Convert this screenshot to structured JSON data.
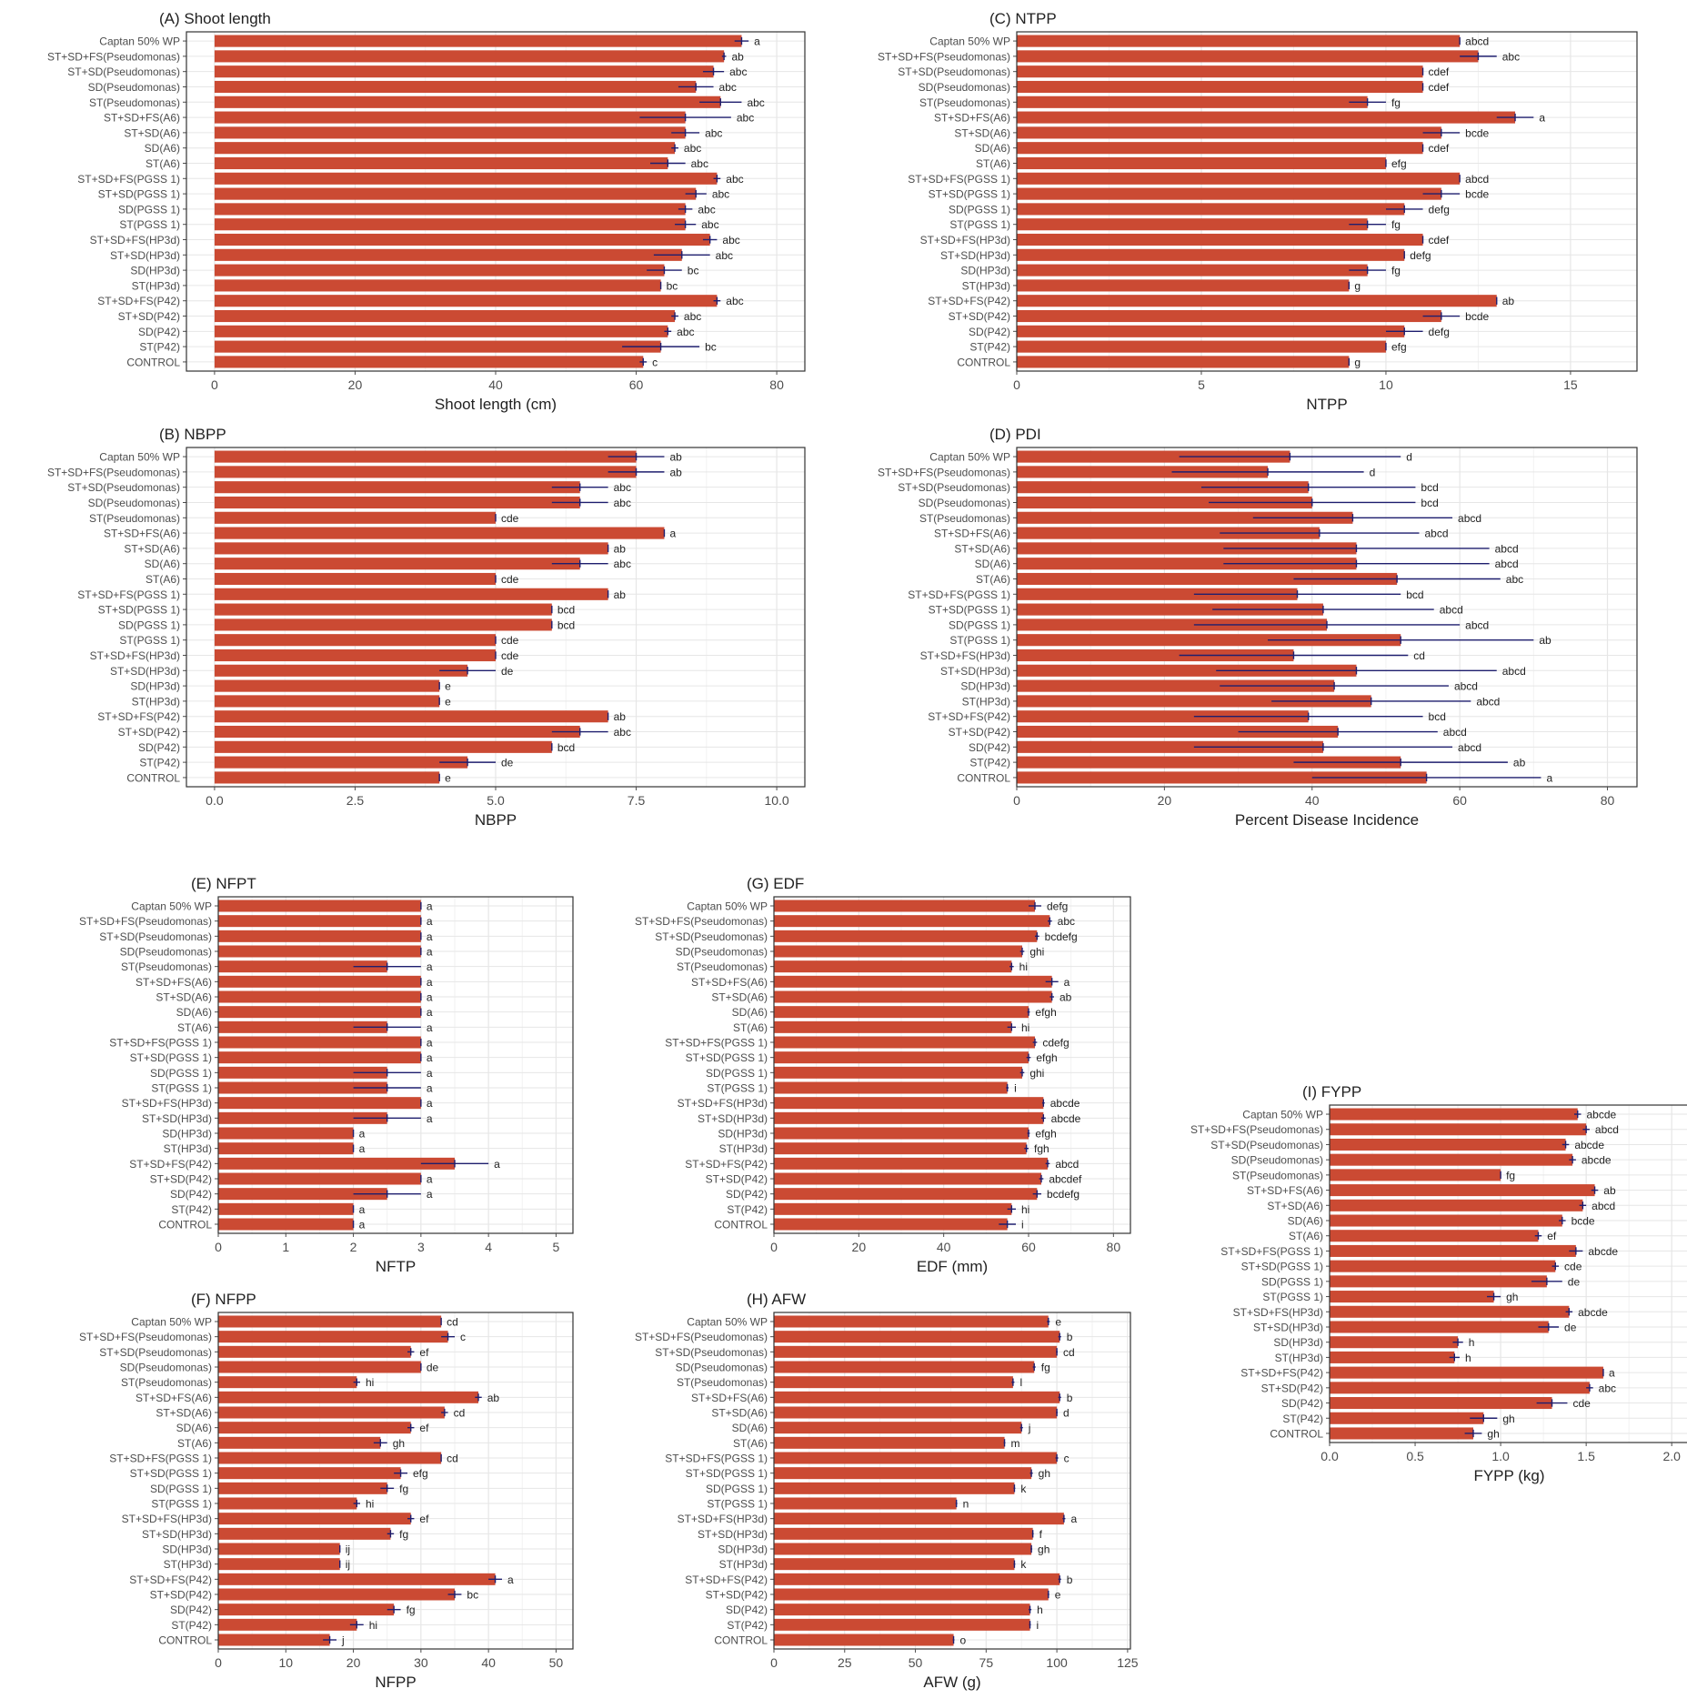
{
  "colors": {
    "bar": "#CB4A33",
    "errorbar": "#1E1E6E",
    "grid": "#E6E6E6",
    "border": "#333333",
    "text": "#222222",
    "tick_label": "#4D4D4D"
  },
  "chart_data": [
    {
      "id": "A",
      "type": "bar",
      "orientation": "horizontal",
      "title": "(A) Shoot length",
      "xlabel": "Shoot length (cm)",
      "ylabel": "",
      "xlim": [
        -4,
        84
      ],
      "xticks": [
        0,
        20,
        40,
        60,
        80
      ],
      "xtick_labels": [
        "0",
        "20",
        "40",
        "60",
        "80"
      ],
      "grid": true,
      "categories": [
        "Captan 50% WP",
        "ST+SD+FS(Pseudomonas)",
        "ST+SD(Pseudomonas)",
        "SD(Pseudomonas)",
        "ST(Pseudomonas)",
        "ST+SD+FS(A6)",
        "ST+SD(A6)",
        "SD(A6)",
        "ST(A6)",
        "ST+SD+FS(PGSS 1)",
        "ST+SD(PGSS 1)",
        "SD(PGSS 1)",
        "ST(PGSS 1)",
        "ST+SD+FS(HP3d)",
        "ST+SD(HP3d)",
        "SD(HP3d)",
        "ST(HP3d)",
        "ST+SD+FS(P42)",
        "ST+SD(P42)",
        "SD(P42)",
        "ST(P42)",
        "CONTROL"
      ],
      "values": [
        75,
        72.5,
        71,
        68.5,
        72,
        67,
        67,
        65.5,
        64.5,
        71.5,
        68.5,
        67,
        67,
        70.5,
        66.5,
        64,
        63.5,
        71.5,
        65.5,
        64.5,
        63.5,
        61
      ],
      "errors": [
        1,
        0.3,
        1.5,
        2.5,
        3,
        6.5,
        2,
        0.5,
        2.5,
        0.5,
        1.5,
        1,
        1.5,
        1,
        4,
        2.5,
        0,
        0.5,
        0.5,
        0.5,
        5.5,
        0.5
      ],
      "letters": [
        "a",
        "ab",
        "abc",
        "abc",
        "abc",
        "abc",
        "abc",
        "abc",
        "abc",
        "abc",
        "abc",
        "abc",
        "abc",
        "abc",
        "abc",
        "bc",
        "bc",
        "abc",
        "abc",
        "abc",
        "bc",
        "c"
      ]
    },
    {
      "id": "C",
      "type": "bar",
      "orientation": "horizontal",
      "title": "(C) NTPP",
      "xlabel": "NTPP",
      "ylabel": "",
      "xlim": [
        0,
        16.8
      ],
      "xticks": [
        0,
        5,
        10,
        15
      ],
      "xtick_labels": [
        "0",
        "5",
        "10",
        "15"
      ],
      "grid": true,
      "categories": [
        "Captan 50% WP",
        "ST+SD+FS(Pseudomonas)",
        "ST+SD(Pseudomonas)",
        "SD(Pseudomonas)",
        "ST(Pseudomonas)",
        "ST+SD+FS(A6)",
        "ST+SD(A6)",
        "SD(A6)",
        "ST(A6)",
        "ST+SD+FS(PGSS 1)",
        "ST+SD(PGSS 1)",
        "SD(PGSS 1)",
        "ST(PGSS 1)",
        "ST+SD+FS(HP3d)",
        "ST+SD(HP3d)",
        "SD(HP3d)",
        "ST(HP3d)",
        "ST+SD+FS(P42)",
        "ST+SD(P42)",
        "SD(P42)",
        "ST(P42)",
        "CONTROL"
      ],
      "values": [
        12,
        12.5,
        11,
        11,
        9.5,
        13.5,
        11.5,
        11,
        10,
        12,
        11.5,
        10.5,
        9.5,
        11,
        10.5,
        9.5,
        9,
        13,
        11.5,
        10.5,
        10,
        9
      ],
      "errors": [
        0,
        0.5,
        0,
        0,
        0.5,
        0.5,
        0.5,
        0,
        0,
        0,
        0.5,
        0.5,
        0.5,
        0,
        0,
        0.5,
        0,
        0,
        0.5,
        0.5,
        0,
        0
      ],
      "letters": [
        "abcd",
        "abc",
        "cdef",
        "cdef",
        "fg",
        "a",
        "bcde",
        "cdef",
        "efg",
        "abcd",
        "bcde",
        "defg",
        "fg",
        "cdef",
        "defg",
        "fg",
        "g",
        "ab",
        "bcde",
        "defg",
        "efg",
        "g"
      ]
    },
    {
      "id": "B",
      "type": "bar",
      "orientation": "horizontal",
      "title": "(B) NBPP",
      "xlabel": "NBPP",
      "ylabel": "",
      "xlim": [
        -0.5,
        10.5
      ],
      "xticks": [
        0,
        2.5,
        5,
        7.5,
        10
      ],
      "xtick_labels": [
        "0.0",
        "2.5",
        "5.0",
        "7.5",
        "10.0"
      ],
      "grid": true,
      "categories": [
        "Captan 50% WP",
        "ST+SD+FS(Pseudomonas)",
        "ST+SD(Pseudomonas)",
        "SD(Pseudomonas)",
        "ST(Pseudomonas)",
        "ST+SD+FS(A6)",
        "ST+SD(A6)",
        "SD(A6)",
        "ST(A6)",
        "ST+SD+FS(PGSS 1)",
        "ST+SD(PGSS 1)",
        "SD(PGSS 1)",
        "ST(PGSS 1)",
        "ST+SD+FS(HP3d)",
        "ST+SD(HP3d)",
        "SD(HP3d)",
        "ST(HP3d)",
        "ST+SD+FS(P42)",
        "ST+SD(P42)",
        "SD(P42)",
        "ST(P42)",
        "CONTROL"
      ],
      "values": [
        7.5,
        7.5,
        6.5,
        6.5,
        5,
        8,
        7,
        6.5,
        5,
        7,
        6,
        6,
        5,
        5,
        4.5,
        4,
        4,
        7,
        6.5,
        6,
        4.5,
        4
      ],
      "errors": [
        0.5,
        0.5,
        0.5,
        0.5,
        0,
        0,
        0,
        0.5,
        0,
        0,
        0,
        0,
        0,
        0,
        0.5,
        0,
        0,
        0,
        0.5,
        0,
        0.5,
        0
      ],
      "letters": [
        "ab",
        "ab",
        "abc",
        "abc",
        "cde",
        "a",
        "ab",
        "abc",
        "cde",
        "ab",
        "bcd",
        "bcd",
        "cde",
        "cde",
        "de",
        "e",
        "e",
        "ab",
        "abc",
        "bcd",
        "de",
        "e"
      ]
    },
    {
      "id": "D",
      "type": "bar",
      "orientation": "horizontal",
      "title": "(D) PDI",
      "xlabel": "Percent Disease Incidence",
      "ylabel": "",
      "xlim": [
        0,
        84
      ],
      "xticks": [
        0,
        20,
        40,
        60,
        80
      ],
      "xtick_labels": [
        "0",
        "20",
        "40",
        "60",
        "80"
      ],
      "grid": true,
      "categories": [
        "Captan 50% WP",
        "ST+SD+FS(Pseudomonas)",
        "ST+SD(Pseudomonas)",
        "SD(Pseudomonas)",
        "ST(Pseudomonas)",
        "ST+SD+FS(A6)",
        "ST+SD(A6)",
        "SD(A6)",
        "ST(A6)",
        "ST+SD+FS(PGSS 1)",
        "ST+SD(PGSS 1)",
        "SD(PGSS 1)",
        "ST(PGSS 1)",
        "ST+SD+FS(HP3d)",
        "ST+SD(HP3d)",
        "SD(HP3d)",
        "ST(HP3d)",
        "ST+SD+FS(P42)",
        "ST+SD(P42)",
        "SD(P42)",
        "ST(P42)",
        "CONTROL"
      ],
      "values": [
        37,
        34,
        39.5,
        40,
        45.5,
        41,
        46,
        46,
        51.5,
        38,
        41.5,
        42,
        52,
        37.5,
        46,
        43,
        48,
        39.5,
        43.5,
        41.5,
        52,
        55.5
      ],
      "errors": [
        15,
        13,
        14.5,
        14,
        13.5,
        13.5,
        18,
        18,
        14,
        14,
        15,
        18,
        18,
        15.5,
        19,
        15.5,
        13.5,
        15.5,
        13.5,
        17.5,
        14.5,
        15.5
      ],
      "letters": [
        "d",
        "d",
        "bcd",
        "bcd",
        "abcd",
        "abcd",
        "abcd",
        "abcd",
        "abc",
        "bcd",
        "abcd",
        "abcd",
        "ab",
        "cd",
        "abcd",
        "abcd",
        "abcd",
        "bcd",
        "abcd",
        "abcd",
        "ab",
        "a"
      ]
    },
    {
      "id": "E",
      "type": "bar",
      "orientation": "horizontal",
      "title": "(E) NFPT",
      "xlabel": "NFTP",
      "ylabel": "",
      "xlim": [
        0,
        5.25
      ],
      "xticks": [
        0,
        1,
        2,
        3,
        4,
        5
      ],
      "xtick_labels": [
        "0",
        "1",
        "2",
        "3",
        "4",
        "5"
      ],
      "grid": true,
      "categories": [
        "Captan 50% WP",
        "ST+SD+FS(Pseudomonas)",
        "ST+SD(Pseudomonas)",
        "SD(Pseudomonas)",
        "ST(Pseudomonas)",
        "ST+SD+FS(A6)",
        "ST+SD(A6)",
        "SD(A6)",
        "ST(A6)",
        "ST+SD+FS(PGSS 1)",
        "ST+SD(PGSS 1)",
        "SD(PGSS 1)",
        "ST(PGSS 1)",
        "ST+SD+FS(HP3d)",
        "ST+SD(HP3d)",
        "SD(HP3d)",
        "ST(HP3d)",
        "ST+SD+FS(P42)",
        "ST+SD(P42)",
        "SD(P42)",
        "ST(P42)",
        "CONTROL"
      ],
      "values": [
        3,
        3,
        3,
        3,
        2.5,
        3,
        3,
        3,
        2.5,
        3,
        3,
        2.5,
        2.5,
        3,
        2.5,
        2,
        2,
        3.5,
        3,
        2.5,
        2,
        2
      ],
      "errors": [
        0,
        0,
        0,
        0,
        0.5,
        0,
        0,
        0,
        0.5,
        0,
        0,
        0.5,
        0.5,
        0,
        0.5,
        0,
        0,
        0.5,
        0,
        0.5,
        0,
        0
      ],
      "letters": [
        "a",
        "a",
        "a",
        "a",
        "a",
        "a",
        "a",
        "a",
        "a",
        "a",
        "a",
        "a",
        "a",
        "a",
        "a",
        "a",
        "a",
        "a",
        "a",
        "a",
        "a",
        "a"
      ]
    },
    {
      "id": "G",
      "type": "bar",
      "orientation": "horizontal",
      "title": "(G) EDF",
      "xlabel": "EDF (mm)",
      "ylabel": "",
      "xlim": [
        0,
        84
      ],
      "xticks": [
        0,
        20,
        40,
        60,
        80
      ],
      "xtick_labels": [
        "0",
        "20",
        "40",
        "60",
        "80"
      ],
      "grid": true,
      "categories": [
        "Captan 50% WP",
        "ST+SD+FS(Pseudomonas)",
        "ST+SD(Pseudomonas)",
        "SD(Pseudomonas)",
        "ST(Pseudomonas)",
        "ST+SD+FS(A6)",
        "ST+SD(A6)",
        "SD(A6)",
        "ST(A6)",
        "ST+SD+FS(PGSS 1)",
        "ST+SD(PGSS 1)",
        "SD(PGSS 1)",
        "ST(PGSS 1)",
        "ST+SD+FS(HP3d)",
        "ST+SD(HP3d)",
        "SD(HP3d)",
        "ST(HP3d)",
        "ST+SD+FS(P42)",
        "ST+SD(P42)",
        "SD(P42)",
        "ST(P42)",
        "CONTROL"
      ],
      "values": [
        61.5,
        65,
        62,
        58.5,
        56,
        65.5,
        65.5,
        60,
        56,
        61.5,
        60,
        58.5,
        55,
        63.5,
        63.5,
        60,
        59.5,
        64.5,
        63,
        62,
        56,
        55
      ],
      "errors": [
        1.5,
        0.5,
        0.5,
        0.5,
        0.5,
        1.5,
        0.5,
        0.3,
        1,
        0.5,
        0.5,
        0.5,
        0.3,
        0.3,
        0.5,
        0.3,
        0.5,
        0.5,
        0.5,
        1,
        1,
        2
      ],
      "letters": [
        "defg",
        "abc",
        "bcdefg",
        "ghi",
        "hi",
        "a",
        "ab",
        "efgh",
        "hi",
        "cdefg",
        "efgh",
        "ghi",
        "i",
        "abcde",
        "abcde",
        "efgh",
        "fgh",
        "abcd",
        "abcdef",
        "bcdefg",
        "hi",
        "i"
      ]
    },
    {
      "id": "I",
      "type": "bar",
      "orientation": "horizontal",
      "title": "(I) FYPP",
      "xlabel": "FYPP (kg)",
      "ylabel": "",
      "xlim": [
        0,
        2.1
      ],
      "xticks": [
        0,
        0.5,
        1,
        1.5,
        2
      ],
      "xtick_labels": [
        "0.0",
        "0.5",
        "1.0",
        "1.5",
        "2.0"
      ],
      "grid": true,
      "categories": [
        "Captan 50% WP",
        "ST+SD+FS(Pseudomonas)",
        "ST+SD(Pseudomonas)",
        "SD(Pseudomonas)",
        "ST(Pseudomonas)",
        "ST+SD+FS(A6)",
        "ST+SD(A6)",
        "SD(A6)",
        "ST(A6)",
        "ST+SD+FS(PGSS 1)",
        "ST+SD(PGSS 1)",
        "SD(PGSS 1)",
        "ST(PGSS 1)",
        "ST+SD+FS(HP3d)",
        "ST+SD(HP3d)",
        "SD(HP3d)",
        "ST(HP3d)",
        "ST+SD+FS(P42)",
        "ST+SD(P42)",
        "SD(P42)",
        "ST(P42)",
        "CONTROL"
      ],
      "values": [
        1.45,
        1.5,
        1.38,
        1.42,
        1,
        1.55,
        1.48,
        1.36,
        1.22,
        1.44,
        1.32,
        1.27,
        0.96,
        1.4,
        1.28,
        0.75,
        0.73,
        1.6,
        1.52,
        1.3,
        0.9,
        0.84
      ],
      "errors": [
        0.02,
        0.02,
        0.02,
        0.02,
        0,
        0.02,
        0.02,
        0.02,
        0.02,
        0.04,
        0.02,
        0.09,
        0.04,
        0.02,
        0.06,
        0.03,
        0.03,
        0,
        0.02,
        0.09,
        0.08,
        0.05
      ],
      "letters": [
        "abcde",
        "abcd",
        "abcde",
        "abcde",
        "fg",
        "ab",
        "abcd",
        "bcde",
        "ef",
        "abcde",
        "cde",
        "de",
        "gh",
        "abcde",
        "de",
        "h",
        "h",
        "a",
        "abc",
        "cde",
        "gh",
        "gh"
      ]
    },
    {
      "id": "F",
      "type": "bar",
      "orientation": "horizontal",
      "title": "(F) NFPP",
      "xlabel": "NFPP",
      "ylabel": "",
      "xlim": [
        0,
        52.5
      ],
      "xticks": [
        0,
        10,
        20,
        30,
        40,
        50
      ],
      "xtick_labels": [
        "0",
        "10",
        "20",
        "30",
        "40",
        "50"
      ],
      "grid": true,
      "categories": [
        "Captan 50% WP",
        "ST+SD+FS(Pseudomonas)",
        "ST+SD(Pseudomonas)",
        "SD(Pseudomonas)",
        "ST(Pseudomonas)",
        "ST+SD+FS(A6)",
        "ST+SD(A6)",
        "SD(A6)",
        "ST(A6)",
        "ST+SD+FS(PGSS 1)",
        "ST+SD(PGSS 1)",
        "SD(PGSS 1)",
        "ST(PGSS 1)",
        "ST+SD+FS(HP3d)",
        "ST+SD(HP3d)",
        "SD(HP3d)",
        "ST(HP3d)",
        "ST+SD+FS(P42)",
        "ST+SD(P42)",
        "SD(P42)",
        "ST(P42)",
        "CONTROL"
      ],
      "values": [
        33,
        34,
        28.5,
        30,
        20.5,
        38.5,
        33.5,
        28.5,
        24,
        33,
        27,
        25,
        20.5,
        28.5,
        25.5,
        18,
        18,
        41,
        35,
        26,
        20.5,
        16.5
      ],
      "errors": [
        0,
        1,
        0.5,
        0,
        0.5,
        0.5,
        0.5,
        0.5,
        1,
        0,
        1,
        1,
        0.5,
        0.5,
        0.5,
        0,
        0,
        1,
        1,
        1,
        1,
        1
      ],
      "letters": [
        "cd",
        "c",
        "ef",
        "de",
        "hi",
        "ab",
        "cd",
        "ef",
        "gh",
        "cd",
        "efg",
        "fg",
        "hi",
        "ef",
        "fg",
        "ij",
        "ij",
        "a",
        "bc",
        "fg",
        "hi",
        "j"
      ]
    },
    {
      "id": "H",
      "type": "bar",
      "orientation": "horizontal",
      "title": "(H) AFW",
      "xlabel": "AFW (g)",
      "ylabel": "",
      "xlim": [
        0,
        126
      ],
      "xticks": [
        0,
        25,
        50,
        75,
        100,
        125
      ],
      "xtick_labels": [
        "0",
        "25",
        "50",
        "75",
        "100",
        "125"
      ],
      "grid": true,
      "categories": [
        "Captan 50% WP",
        "ST+SD+FS(Pseudomonas)",
        "ST+SD(Pseudomonas)",
        "SD(Pseudomonas)",
        "ST(Pseudomonas)",
        "ST+SD+FS(A6)",
        "ST+SD(A6)",
        "SD(A6)",
        "ST(A6)",
        "ST+SD+FS(PGSS 1)",
        "ST+SD(PGSS 1)",
        "SD(PGSS 1)",
        "ST(PGSS 1)",
        "ST+SD+FS(HP3d)",
        "ST+SD(HP3d)",
        "SD(HP3d)",
        "ST(HP3d)",
        "ST+SD+FS(P42)",
        "ST+SD(P42)",
        "SD(P42)",
        "ST(P42)",
        "CONTROL"
      ],
      "values": [
        97,
        101,
        100,
        92,
        84.5,
        101,
        100,
        87.5,
        81.5,
        100,
        91,
        85,
        64.5,
        102.5,
        91.5,
        91,
        85,
        101,
        97,
        90.5,
        90.5,
        63.5
      ],
      "errors": [
        0.5,
        0.5,
        0.3,
        0.5,
        0.5,
        0.5,
        0.3,
        0.5,
        0.3,
        0.5,
        0.5,
        0.3,
        0.3,
        0.5,
        0.3,
        0.3,
        0.3,
        0.5,
        0.3,
        0.5,
        0.3,
        0.3
      ],
      "letters": [
        "e",
        "b",
        "cd",
        "fg",
        "l",
        "b",
        "d",
        "j",
        "m",
        "c",
        "gh",
        "k",
        "n",
        "a",
        "f",
        "gh",
        "k",
        "b",
        "e",
        "h",
        "i",
        "o"
      ]
    }
  ]
}
